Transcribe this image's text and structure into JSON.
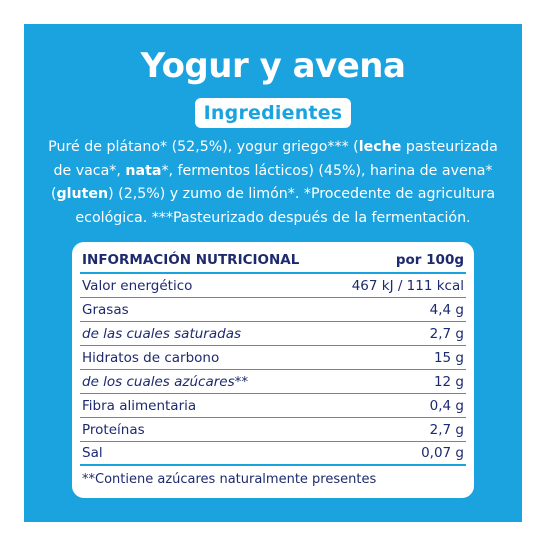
{
  "title": "Yogur y avena",
  "ingredients_label": "Ingredientes",
  "ingredients": [
    {
      "text": "Puré de plátano* (52,5%), yogur griego*** (",
      "bold": false
    },
    {
      "text": "leche",
      "bold": true
    },
    {
      "text": " pasteurizada de vaca*, ",
      "bold": false
    },
    {
      "text": "nata",
      "bold": true
    },
    {
      "text": "*, fermentos lácticos) (45%), harina de avena* (",
      "bold": false
    },
    {
      "text": "gluten",
      "bold": true
    },
    {
      "text": ") (2,5%) y zumo de limón*. *Procedente de agricultura ecológica. ***Pasteurizado después de la fermentación.",
      "bold": false
    }
  ],
  "nutrition": {
    "header": {
      "name": "INFORMACIÓN NUTRICIONAL",
      "value": "por 100g"
    },
    "rows": [
      {
        "name": "Valor energético",
        "value": "467 kJ / 111 kcal",
        "sub": false
      },
      {
        "name": "Grasas",
        "value": "4,4 g",
        "sub": false
      },
      {
        "name": "de las cuales saturadas",
        "value": "2,7 g",
        "sub": true
      },
      {
        "name": "Hidratos de carbono",
        "value": "15 g",
        "sub": false
      },
      {
        "name": "de los cuales azúcares**",
        "value": "12 g",
        "sub": true
      },
      {
        "name": "Fibra alimentaria",
        "value": "0,4 g",
        "sub": false
      },
      {
        "name": "Proteínas",
        "value": "2,7 g",
        "sub": false
      },
      {
        "name": "Sal",
        "value": "0,07 g",
        "sub": false
      }
    ],
    "footnote": "**Contiene azúcares naturalmente presentes"
  },
  "colors": {
    "panel": "#1ba3e0",
    "text_dark": "#1e2a6e",
    "white": "#ffffff"
  }
}
